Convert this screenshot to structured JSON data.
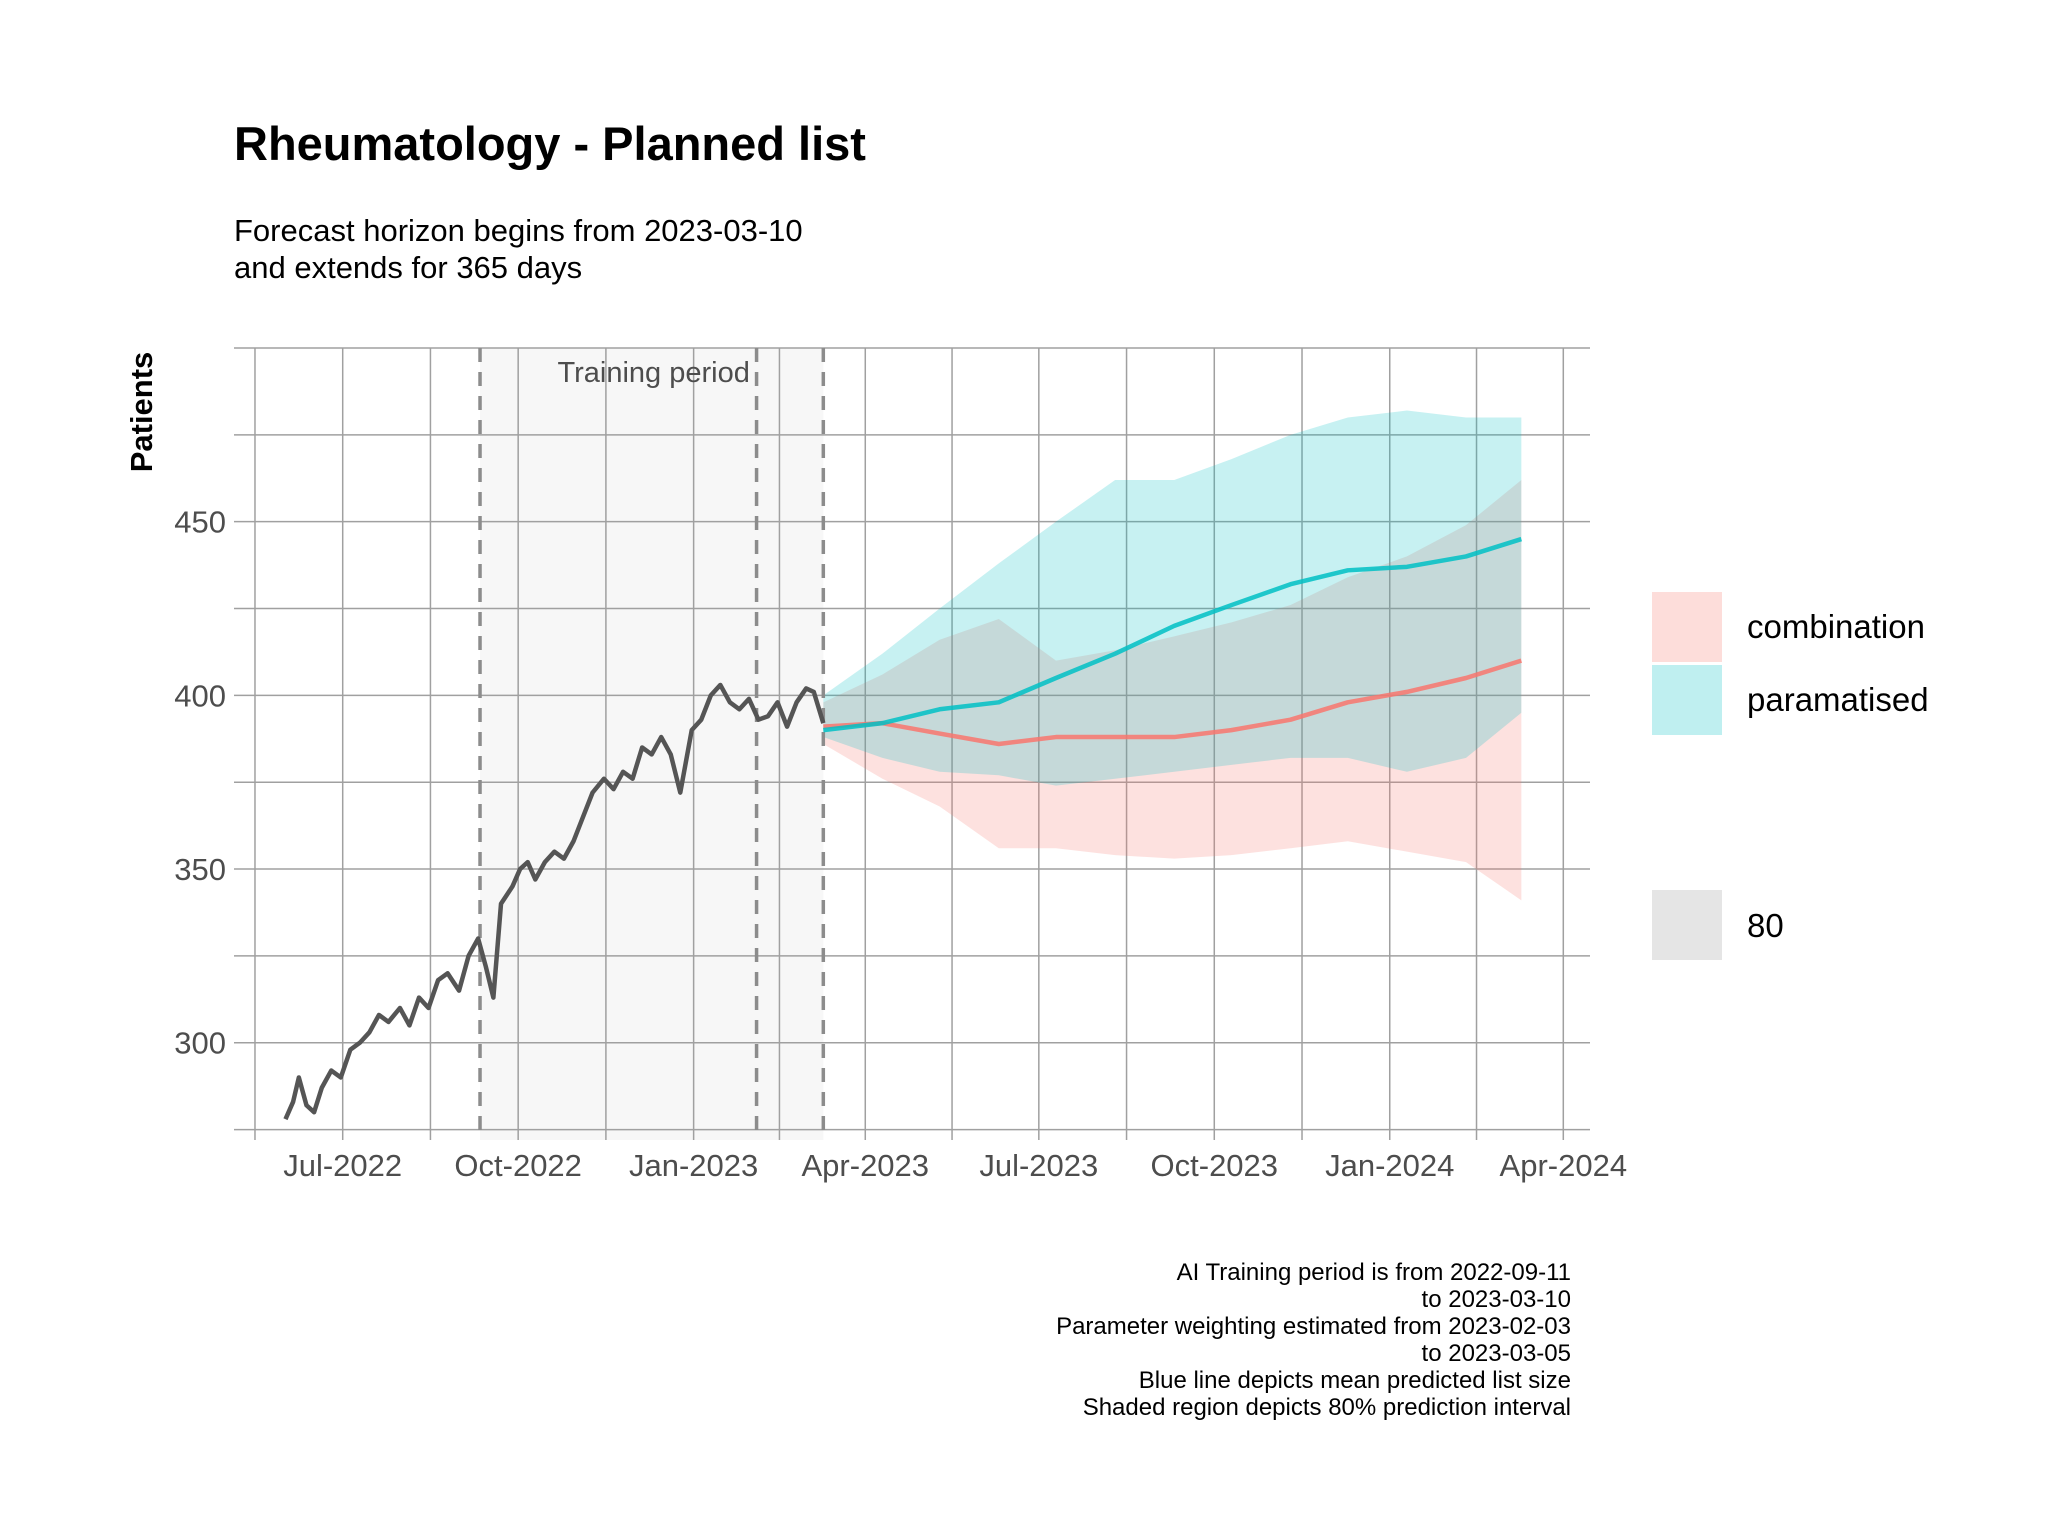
{
  "chart_data": {
    "type": "line",
    "title": "Rheumatology - Planned list",
    "subtitle": [
      "Forecast horizon begins from 2023-03-10",
      "and extends for 365 days"
    ],
    "xlabel": "",
    "ylabel": "Patients",
    "x_axis_type": "date",
    "xlim": [
      "2022-05-05",
      "2024-04-15"
    ],
    "ylim": [
      272,
      500
    ],
    "x_ticks": [
      "2022-07-01",
      "2022-10-01",
      "2023-01-01",
      "2023-04-01",
      "2023-07-01",
      "2023-10-01",
      "2024-01-01",
      "2024-04-01"
    ],
    "x_tick_labels": [
      "Jul-2022",
      "Oct-2022",
      "Jan-2023",
      "Apr-2023",
      "Jul-2023",
      "Oct-2023",
      "Jan-2024",
      "Apr-2024"
    ],
    "y_ticks": [
      300,
      350,
      400,
      450
    ],
    "y_tick_labels": [
      "300",
      "350",
      "400",
      "450"
    ],
    "grid": true,
    "annotations": {
      "training_region": [
        "2022-09-11",
        "2023-03-10"
      ],
      "training_label": "Training period",
      "vlines": [
        "2022-09-11",
        "2023-02-03",
        "2023-03-10"
      ]
    },
    "history": {
      "color": "#555555",
      "x": [
        "2022-06-01",
        "2022-06-05",
        "2022-06-08",
        "2022-06-12",
        "2022-06-16",
        "2022-06-20",
        "2022-06-25",
        "2022-06-30",
        "2022-07-05",
        "2022-07-10",
        "2022-07-15",
        "2022-07-20",
        "2022-07-25",
        "2022-07-31",
        "2022-08-05",
        "2022-08-10",
        "2022-08-15",
        "2022-08-20",
        "2022-08-25",
        "2022-08-31",
        "2022-09-05",
        "2022-09-10",
        "2022-09-14",
        "2022-09-18",
        "2022-09-22",
        "2022-09-28",
        "2022-10-02",
        "2022-10-06",
        "2022-10-10",
        "2022-10-15",
        "2022-10-20",
        "2022-10-25",
        "2022-10-30",
        "2022-11-04",
        "2022-11-09",
        "2022-11-15",
        "2022-11-20",
        "2022-11-25",
        "2022-11-30",
        "2022-12-05",
        "2022-12-10",
        "2022-12-15",
        "2022-12-20",
        "2022-12-25",
        "2022-12-31",
        "2023-01-05",
        "2023-01-10",
        "2023-01-15",
        "2023-01-20",
        "2023-01-25",
        "2023-01-30",
        "2023-02-04",
        "2023-02-09",
        "2023-02-14",
        "2023-02-19",
        "2023-02-24",
        "2023-03-01",
        "2023-03-05",
        "2023-03-10"
      ],
      "y": [
        278,
        283,
        290,
        282,
        280,
        287,
        292,
        290,
        298,
        300,
        303,
        308,
        306,
        310,
        305,
        313,
        310,
        318,
        320,
        315,
        325,
        330,
        322,
        313,
        340,
        345,
        350,
        352,
        347,
        352,
        355,
        353,
        358,
        365,
        372,
        376,
        373,
        378,
        376,
        385,
        383,
        388,
        383,
        372,
        390,
        393,
        400,
        403,
        398,
        396,
        399,
        393,
        394,
        398,
        391,
        398,
        402,
        401,
        392
      ]
    },
    "series": [
      {
        "name": "combination",
        "color": "#f8766d",
        "x": [
          "2023-03-10",
          "2023-04-10",
          "2023-05-10",
          "2023-06-10",
          "2023-07-10",
          "2023-08-10",
          "2023-09-10",
          "2023-10-10",
          "2023-11-10",
          "2023-12-10",
          "2024-01-10",
          "2024-02-10",
          "2024-03-10"
        ],
        "mean": [
          391,
          392,
          389,
          386,
          388,
          388,
          388,
          390,
          393,
          398,
          401,
          405,
          410
        ],
        "lower": [
          386,
          376,
          368,
          356,
          356,
          354,
          353,
          354,
          356,
          358,
          355,
          352,
          341
        ],
        "upper": [
          398,
          406,
          416,
          422,
          410,
          413,
          417,
          421,
          426,
          434,
          440,
          449,
          462
        ]
      },
      {
        "name": "paramatised",
        "color": "#00bfc4",
        "x": [
          "2023-03-10",
          "2023-04-10",
          "2023-05-10",
          "2023-06-10",
          "2023-07-10",
          "2023-08-10",
          "2023-09-10",
          "2023-10-10",
          "2023-11-10",
          "2023-12-10",
          "2024-01-10",
          "2024-02-10",
          "2024-03-10"
        ],
        "mean": [
          390,
          392,
          396,
          398,
          405,
          412,
          420,
          426,
          432,
          436,
          437,
          440,
          445
        ],
        "lower": [
          388,
          382,
          378,
          377,
          374,
          376,
          378,
          380,
          382,
          382,
          378,
          382,
          395
        ],
        "upper": [
          400,
          412,
          425,
          438,
          450,
          462,
          462,
          468,
          475,
          480,
          482,
          480,
          480
        ]
      }
    ],
    "interval_legend": {
      "label": "80",
      "color": "#e5e5e5"
    },
    "caption": [
      "AI Training period is from 2022-09-11",
      "to 2023-03-10",
      "Parameter weighting estimated from 2023-02-03",
      "to 2023-03-05",
      "Blue line depicts mean predicted list size",
      "Shaded region depicts 80% prediction interval"
    ]
  }
}
